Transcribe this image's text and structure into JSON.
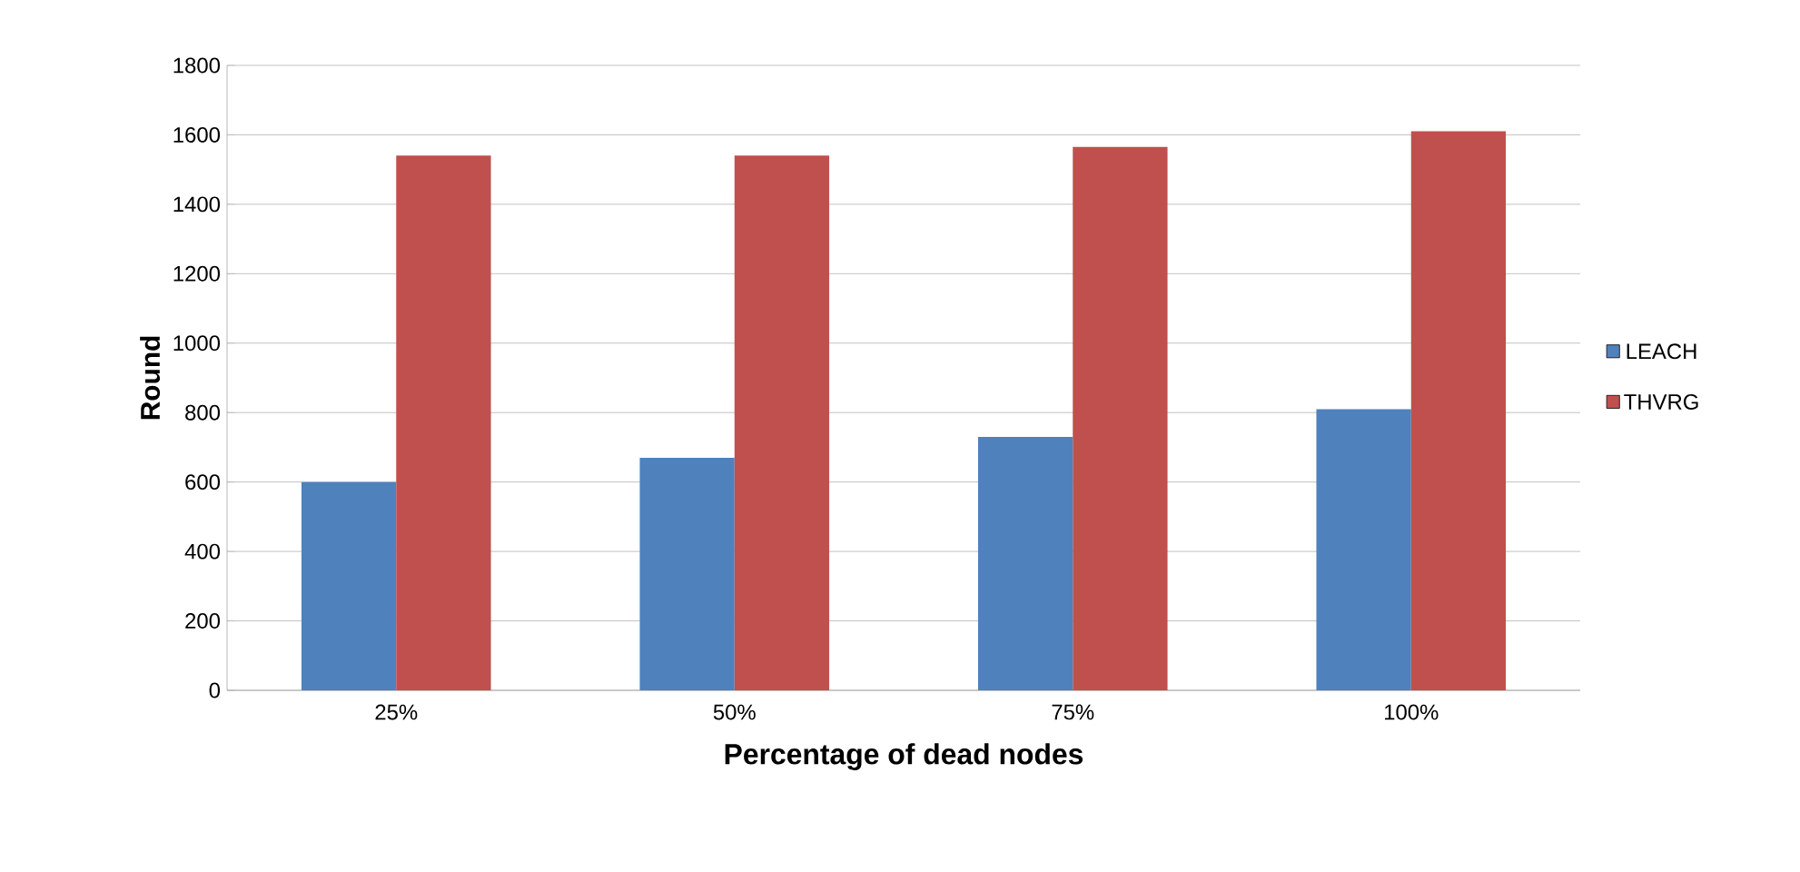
{
  "chart_data": {
    "type": "bar",
    "xlabel": "Percentage of dead nodes",
    "ylabel": "Round",
    "categories": [
      "25%",
      "50%",
      "75%",
      "100%"
    ],
    "series": [
      {
        "name": "LEACH",
        "color": "#4f81bd",
        "values": [
          600,
          670,
          730,
          810
        ]
      },
      {
        "name": "THVRG",
        "color": "#c0504d",
        "values": [
          1540,
          1540,
          1565,
          1610
        ]
      }
    ],
    "ylim": [
      0,
      1800
    ],
    "yticks": [
      0,
      200,
      400,
      600,
      800,
      1000,
      1200,
      1400,
      1600,
      1800
    ],
    "grid": "y",
    "legend": "right"
  }
}
